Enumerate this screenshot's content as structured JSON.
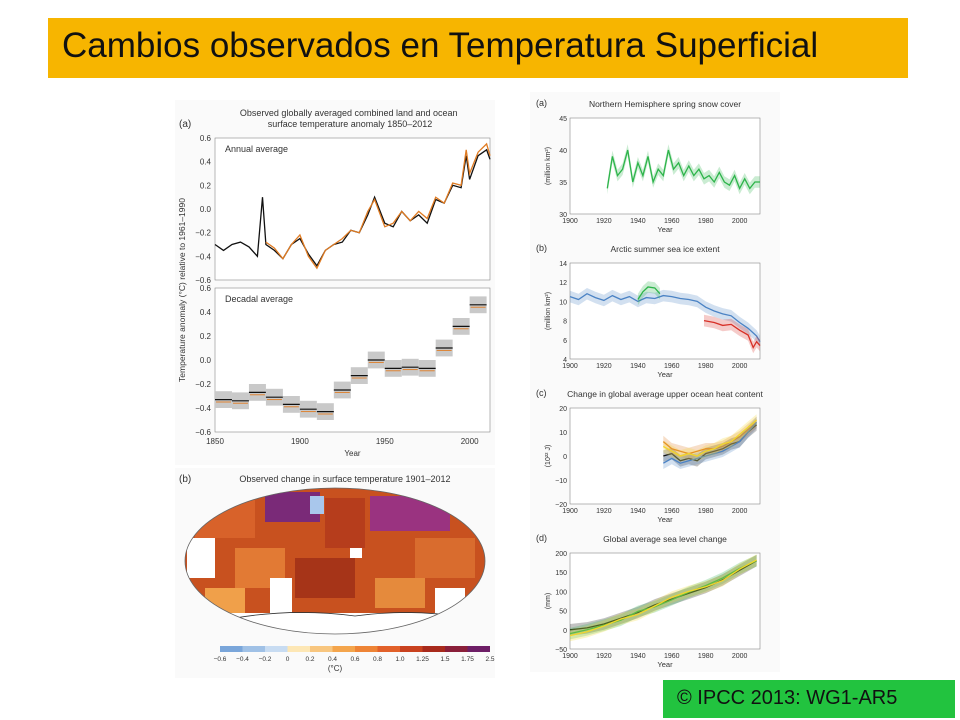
{
  "page_title": "Cambios observados en Temperatura Superficial",
  "copyright": "© IPCC 2013: WG1-AR5",
  "colors": {
    "title_bg": "#f7b500",
    "copyright_bg": "#22c33f",
    "black": "#111111",
    "orange": "#e07b22",
    "blue": "#4a82c4",
    "green": "#2db44a",
    "red": "#d73027",
    "yellow": "#f2d62a"
  },
  "chart_data": [
    {
      "panel": "(a)",
      "type": "line",
      "title": "Observed globally averaged combined land and ocean surface temperature anomaly 1850–2012",
      "subtitle": "Annual average",
      "ylabel": "Temperature anomaly (°C) relative to 1961–1990",
      "xlim": [
        1850,
        2012
      ],
      "ylim": [
        -0.6,
        0.6
      ],
      "yticks": [
        "−0.6",
        "−0.4",
        "−0.2",
        "0.0",
        "0.2",
        "0.4",
        "0.6"
      ],
      "series": [
        {
          "color": "black",
          "x": [
            1850,
            1855,
            1860,
            1865,
            1870,
            1875,
            1878,
            1880,
            1885,
            1890,
            1895,
            1900,
            1905,
            1910,
            1915,
            1920,
            1925,
            1930,
            1935,
            1940,
            1944,
            1950,
            1955,
            1960,
            1965,
            1970,
            1975,
            1980,
            1985,
            1990,
            1995,
            1998,
            2000,
            2005,
            2010,
            2012
          ],
          "y": [
            -0.3,
            -0.35,
            -0.3,
            -0.28,
            -0.32,
            -0.4,
            0.1,
            -0.3,
            -0.35,
            -0.42,
            -0.3,
            -0.25,
            -0.38,
            -0.48,
            -0.35,
            -0.3,
            -0.28,
            -0.18,
            -0.2,
            -0.05,
            0.1,
            -0.12,
            -0.15,
            -0.02,
            -0.1,
            -0.05,
            -0.12,
            0.08,
            0.05,
            0.2,
            0.18,
            0.45,
            0.25,
            0.45,
            0.5,
            0.42
          ]
        },
        {
          "color": "orange",
          "x": [
            1880,
            1885,
            1890,
            1895,
            1900,
            1905,
            1910,
            1915,
            1920,
            1925,
            1930,
            1935,
            1940,
            1944,
            1950,
            1955,
            1960,
            1965,
            1970,
            1975,
            1980,
            1985,
            1990,
            1995,
            1998,
            2000,
            2005,
            2010,
            2012
          ],
          "y": [
            -0.28,
            -0.33,
            -0.42,
            -0.3,
            -0.22,
            -0.4,
            -0.5,
            -0.35,
            -0.3,
            -0.25,
            -0.18,
            -0.2,
            -0.02,
            0.08,
            -0.15,
            -0.12,
            -0.02,
            -0.1,
            -0.02,
            -0.08,
            0.1,
            0.05,
            0.22,
            0.2,
            0.5,
            0.3,
            0.48,
            0.55,
            0.45
          ]
        }
      ]
    },
    {
      "panel": "(a)",
      "type": "bar",
      "subtitle": "Decadal average",
      "xlabel": "Year",
      "xlim": [
        1850,
        2012
      ],
      "ylim": [
        -0.6,
        0.6
      ],
      "xticks": [
        "1850",
        "1900",
        "1950",
        "2000"
      ],
      "yticks": [
        "−0.6",
        "−0.4",
        "−0.2",
        "0.0",
        "0.2",
        "0.4",
        "0.6"
      ],
      "decades": [
        1850,
        1860,
        1870,
        1880,
        1890,
        1900,
        1910,
        1920,
        1930,
        1940,
        1950,
        1960,
        1970,
        1980,
        1990,
        2000
      ],
      "values": [
        -0.33,
        -0.34,
        -0.27,
        -0.31,
        -0.37,
        -0.41,
        -0.43,
        -0.25,
        -0.13,
        0.0,
        -0.07,
        -0.06,
        -0.07,
        0.1,
        0.28,
        0.46
      ]
    },
    {
      "panel": "(b)",
      "type": "heatmap",
      "title": "Observed change in surface temperature 1901–2012",
      "legend_ticks": [
        "−0.6",
        "−0.4",
        "−0.2",
        "0",
        "0.2",
        "0.4",
        "0.6",
        "0.8",
        "1.0",
        "1.25",
        "1.5",
        "1.75",
        "2.5"
      ],
      "legend_unit": "(°C)"
    },
    {
      "panel": "(a)",
      "type": "line",
      "title": "Northern Hemisphere spring snow cover",
      "ylabel": "(million km²)",
      "xlabel": "Year",
      "xlim": [
        1900,
        2012
      ],
      "ylim": [
        30,
        45
      ],
      "xticks": [
        "1900",
        "1920",
        "1940",
        "1960",
        "1980",
        "2000"
      ],
      "yticks": [
        "30",
        "35",
        "40",
        "45"
      ],
      "series": [
        {
          "color": "green",
          "x": [
            1922,
            1925,
            1928,
            1931,
            1934,
            1937,
            1940,
            1943,
            1946,
            1949,
            1952,
            1955,
            1958,
            1961,
            1964,
            1967,
            1970,
            1973,
            1976,
            1979,
            1982,
            1985,
            1988,
            1991,
            1994,
            1997,
            2000,
            2003,
            2006,
            2009,
            2012
          ],
          "y": [
            34,
            39,
            36,
            37,
            40,
            35,
            38,
            36,
            39,
            35,
            37,
            36,
            40,
            37,
            38,
            36,
            37.5,
            36,
            37,
            35.5,
            36,
            35,
            36.5,
            35,
            34.5,
            36,
            34,
            35.5,
            34,
            35,
            35
          ]
        }
      ]
    },
    {
      "panel": "(b)",
      "type": "line",
      "title": "Arctic summer sea ice extent",
      "ylabel": "(million km²)",
      "xlabel": "Year",
      "xlim": [
        1900,
        2012
      ],
      "ylim": [
        4,
        14
      ],
      "xticks": [
        "1900",
        "1920",
        "1940",
        "1960",
        "1980",
        "2000"
      ],
      "yticks": [
        "4",
        "6",
        "8",
        "10",
        "12",
        "14"
      ],
      "series": [
        {
          "color": "blue",
          "x": [
            1900,
            1905,
            1910,
            1915,
            1920,
            1925,
            1930,
            1935,
            1940,
            1945,
            1950,
            1955,
            1960,
            1965,
            1970,
            1975,
            1980,
            1985,
            1990,
            1995,
            2000,
            2005,
            2010,
            2012
          ],
          "y": [
            10.5,
            10.2,
            10.8,
            10.4,
            10.1,
            10.6,
            10.2,
            10.5,
            10.0,
            10.4,
            10.3,
            10.6,
            10.5,
            10.3,
            10.2,
            10.0,
            9.4,
            9.0,
            8.7,
            8.5,
            7.8,
            7.2,
            6.4,
            5.8
          ]
        },
        {
          "color": "green",
          "x": [
            1940,
            1943,
            1946,
            1950,
            1953
          ],
          "y": [
            10.2,
            11.0,
            11.5,
            11.4,
            10.8
          ]
        },
        {
          "color": "red",
          "x": [
            1979,
            1985,
            1990,
            1995,
            2000,
            2005,
            2008,
            2010,
            2012
          ],
          "y": [
            8.0,
            7.8,
            7.5,
            7.6,
            7.0,
            6.5,
            5.2,
            5.8,
            5.4
          ]
        }
      ]
    },
    {
      "panel": "(c)",
      "type": "line",
      "title": "Change in global average upper ocean heat content",
      "ylabel": "(10²² J)",
      "xlabel": "Year",
      "xlim": [
        1900,
        2012
      ],
      "ylim": [
        -20,
        20
      ],
      "xticks": [
        "1900",
        "1920",
        "1940",
        "1960",
        "1980",
        "2000"
      ],
      "yticks": [
        "−20",
        "−10",
        "0",
        "10",
        "20"
      ],
      "series": [
        {
          "color": "black",
          "x": [
            1955,
            1960,
            1965,
            1970,
            1975,
            1980,
            1985,
            1990,
            1995,
            2000,
            2005,
            2010
          ],
          "y": [
            0,
            1,
            -2,
            -1,
            -2,
            1,
            2,
            3,
            5,
            6,
            10,
            13
          ]
        },
        {
          "color": "orange",
          "x": [
            1955,
            1960,
            1965,
            1970,
            1975,
            1980,
            1985,
            1990,
            1995,
            2000,
            2005,
            2010
          ],
          "y": [
            6,
            3,
            2,
            1,
            2,
            3,
            3,
            4,
            6,
            8,
            11,
            14
          ]
        },
        {
          "color": "blue",
          "x": [
            1955,
            1960,
            1965,
            1970,
            1975,
            1980,
            1985,
            1990,
            1995,
            2000,
            2005,
            2010
          ],
          "y": [
            -3,
            -1,
            -3,
            -2,
            -1,
            0,
            1,
            2,
            4,
            6,
            10,
            14
          ]
        },
        {
          "color": "yellow",
          "x": [
            1955,
            1960,
            1965,
            1970,
            1975,
            1980,
            1985,
            1990,
            1995,
            2000,
            2005,
            2010
          ],
          "y": [
            4,
            2,
            0,
            1,
            0,
            2,
            3,
            5,
            6,
            9,
            12,
            15
          ]
        }
      ]
    },
    {
      "panel": "(d)",
      "type": "line",
      "title": "Global average sea level change",
      "ylabel": "(mm)",
      "xlabel": "Year",
      "xlim": [
        1900,
        2012
      ],
      "ylim": [
        -50,
        200
      ],
      "xticks": [
        "1900",
        "1920",
        "1940",
        "1960",
        "1980",
        "2000"
      ],
      "yticks": [
        "−50",
        "0",
        "50",
        "100",
        "150",
        "200"
      ],
      "series": [
        {
          "color": "black",
          "x": [
            1900,
            1910,
            1920,
            1930,
            1940,
            1950,
            1960,
            1970,
            1980,
            1990,
            2000,
            2010
          ],
          "y": [
            0,
            5,
            15,
            30,
            45,
            65,
            80,
            95,
            110,
            130,
            155,
            180
          ]
        },
        {
          "color": "green",
          "x": [
            1900,
            1910,
            1920,
            1930,
            1940,
            1950,
            1960,
            1970,
            1980,
            1990,
            2000,
            2010
          ],
          "y": [
            -10,
            0,
            12,
            25,
            48,
            60,
            78,
            98,
            115,
            135,
            160,
            180
          ]
        },
        {
          "color": "yellow",
          "x": [
            1900,
            1910,
            1920,
            1930,
            1940,
            1950,
            1960,
            1970,
            1980,
            1990,
            2000,
            2010
          ],
          "y": [
            -15,
            -5,
            10,
            28,
            40,
            62,
            85,
            100,
            112,
            128,
            158,
            182
          ]
        }
      ]
    }
  ]
}
